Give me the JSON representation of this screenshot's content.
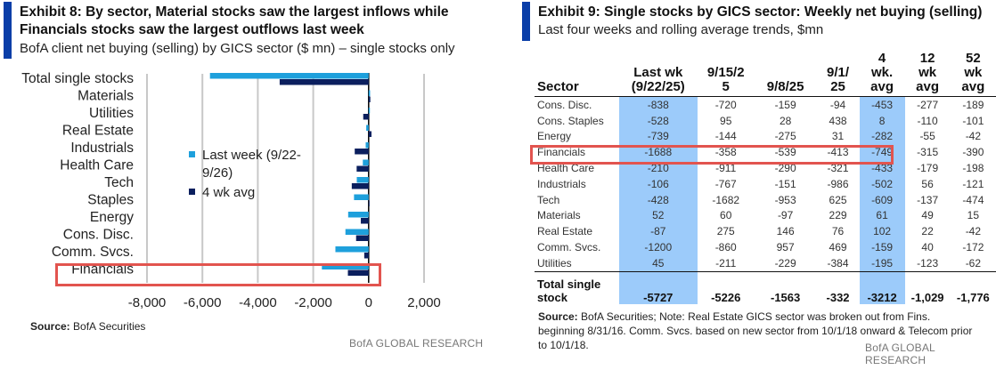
{
  "left": {
    "title_line1": "Exhibit 8: By sector, Material stocks saw the largest inflows while",
    "title_line2": "Financials stocks saw the largest outflows last week",
    "subtitle": "BofA client net buying (selling) by GICS sector ($ mn) – single stocks only",
    "source_label": "Source:",
    "source_text": "BofA Securities",
    "brand": "BofA GLOBAL RESEARCH",
    "accent_color": "#0a3ea8",
    "highlight_box_color": "#e2544f"
  },
  "chart_data": {
    "type": "bar",
    "orientation": "horizontal",
    "title": "Exhibit 8: By sector, Material stocks saw the largest inflows while Financials stocks saw the largest outflows last week",
    "subtitle": "BofA client net buying (selling) by GICS sector ($ mn) – single stocks only",
    "xlabel": "",
    "ylabel": "",
    "categories": [
      "Total single stocks",
      "Materials",
      "Utilities",
      "Real Estate",
      "Industrials",
      "Health Care",
      "Tech",
      "Staples",
      "Energy",
      "Cons. Disc.",
      "Comm. Svcs.",
      "Financials"
    ],
    "series": [
      {
        "name": "Last week (9/22-9/26)",
        "color": "#1ea0dc",
        "values": [
          -5727,
          52,
          45,
          -87,
          -106,
          -210,
          -428,
          -528,
          -739,
          -838,
          -1200,
          -1688
        ]
      },
      {
        "name": "4 wk avg",
        "color": "#0b1f5e",
        "values": [
          -3212,
          61,
          -195,
          102,
          -502,
          -433,
          -609,
          8,
          -282,
          -453,
          -159,
          -749
        ]
      }
    ],
    "xlim": [
      -8000,
      2000
    ],
    "xticks": [
      -8000,
      -6000,
      -4000,
      -2000,
      0,
      2000
    ],
    "xtick_labels": [
      "-8,000",
      "-6,000",
      "-4,000",
      "-2,000",
      "0",
      "2,000"
    ],
    "grid": true,
    "legend_position": "center-left",
    "highlighted_category": "Financials"
  },
  "right": {
    "title": "Exhibit 9: Single stocks by GICS sector: Weekly net buying (selling)",
    "subtitle": "Last four weeks and rolling average trends, $mn",
    "headers": [
      "Sector",
      "Last wk\n(9/22/25)",
      "9/15/2\n5",
      "9/8/25",
      "9/1/\n25",
      "4\nwk.\navg",
      "12\nwk\navg",
      "52\nwk\navg"
    ],
    "rows": [
      [
        "Cons. Disc.",
        "-838",
        "-720",
        "-159",
        "-94",
        "-453",
        "-277",
        "-189"
      ],
      [
        "Cons. Staples",
        "-528",
        "95",
        "28",
        "438",
        "8",
        "-110",
        "-101"
      ],
      [
        "Energy",
        "-739",
        "-144",
        "-275",
        "31",
        "-282",
        "-55",
        "-42"
      ],
      [
        "Financials",
        "-1688",
        "-358",
        "-539",
        "-413",
        "-749",
        "-315",
        "-390"
      ],
      [
        "Health Care",
        "-210",
        "-911",
        "-290",
        "-321",
        "-433",
        "-179",
        "-198"
      ],
      [
        "Industrials",
        "-106",
        "-767",
        "-151",
        "-986",
        "-502",
        "56",
        "-121"
      ],
      [
        "Tech",
        "-428",
        "-1682",
        "-953",
        "625",
        "-609",
        "-137",
        "-474"
      ],
      [
        "Materials",
        "52",
        "60",
        "-97",
        "229",
        "61",
        "49",
        "15"
      ],
      [
        "Real Estate",
        "-87",
        "275",
        "146",
        "76",
        "102",
        "22",
        "-42"
      ],
      [
        "Comm. Svcs.",
        "-1200",
        "-860",
        "957",
        "469",
        "-159",
        "40",
        "-172"
      ],
      [
        "Utilities",
        "45",
        "-211",
        "-229",
        "-384",
        "-195",
        "-123",
        "-62"
      ]
    ],
    "total_row": [
      "Total single\nstock",
      "-5727",
      "-5226",
      "-1563",
      "-332",
      "-3212",
      "-1,029",
      "-1,776"
    ],
    "highlight_column_color": "#9ccbfa",
    "source_label": "Source:",
    "source_text": "BofA Securities; Note: Real Estate GICS sector was broken out from Fins. beginning 8/31/16. Comm. Svcs. based on new sector from 10/1/18 onward & Telecom prior to 10/1/18.",
    "brand": "BofA GLOBAL RESEARCH"
  }
}
